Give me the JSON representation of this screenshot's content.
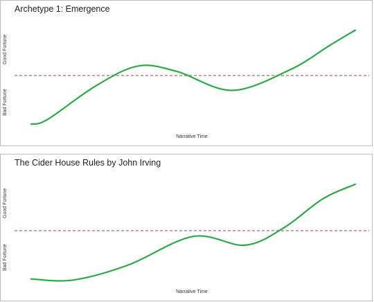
{
  "chart_data": [
    {
      "type": "line",
      "title": "Archetype 1: Emergence",
      "xlabel": "Narrative Time",
      "ylabel_top": "Good Fortune",
      "ylabel_bottom": "Bad Fortune",
      "baseline": 0,
      "ylim": [
        -1,
        1
      ],
      "legend": "none",
      "grid": false,
      "colors": {
        "line": "#2aa845",
        "baseline": "#c07f7f"
      },
      "x": [
        0,
        0.05,
        0.2,
        0.33,
        0.45,
        0.62,
        0.8,
        0.92,
        1
      ],
      "y": [
        -0.95,
        -0.86,
        -0.2,
        0.19,
        0.08,
        -0.29,
        0.12,
        0.6,
        0.91
      ]
    },
    {
      "type": "line",
      "title": "The Cider House Rules by John Irving",
      "xlabel": "Narrative Time",
      "ylabel_top": "Good Fortune",
      "ylabel_bottom": "Bad Fortune",
      "baseline": 0,
      "ylim": [
        -1,
        1
      ],
      "legend": "none",
      "grid": false,
      "colors": {
        "line": "#2aa845",
        "baseline": "#c07f7f"
      },
      "x": [
        0,
        0.13,
        0.3,
        0.5,
        0.66,
        0.78,
        0.9,
        1
      ],
      "y": [
        -0.93,
        -0.95,
        -0.66,
        -0.11,
        -0.28,
        0.06,
        0.64,
        0.93
      ]
    }
  ]
}
